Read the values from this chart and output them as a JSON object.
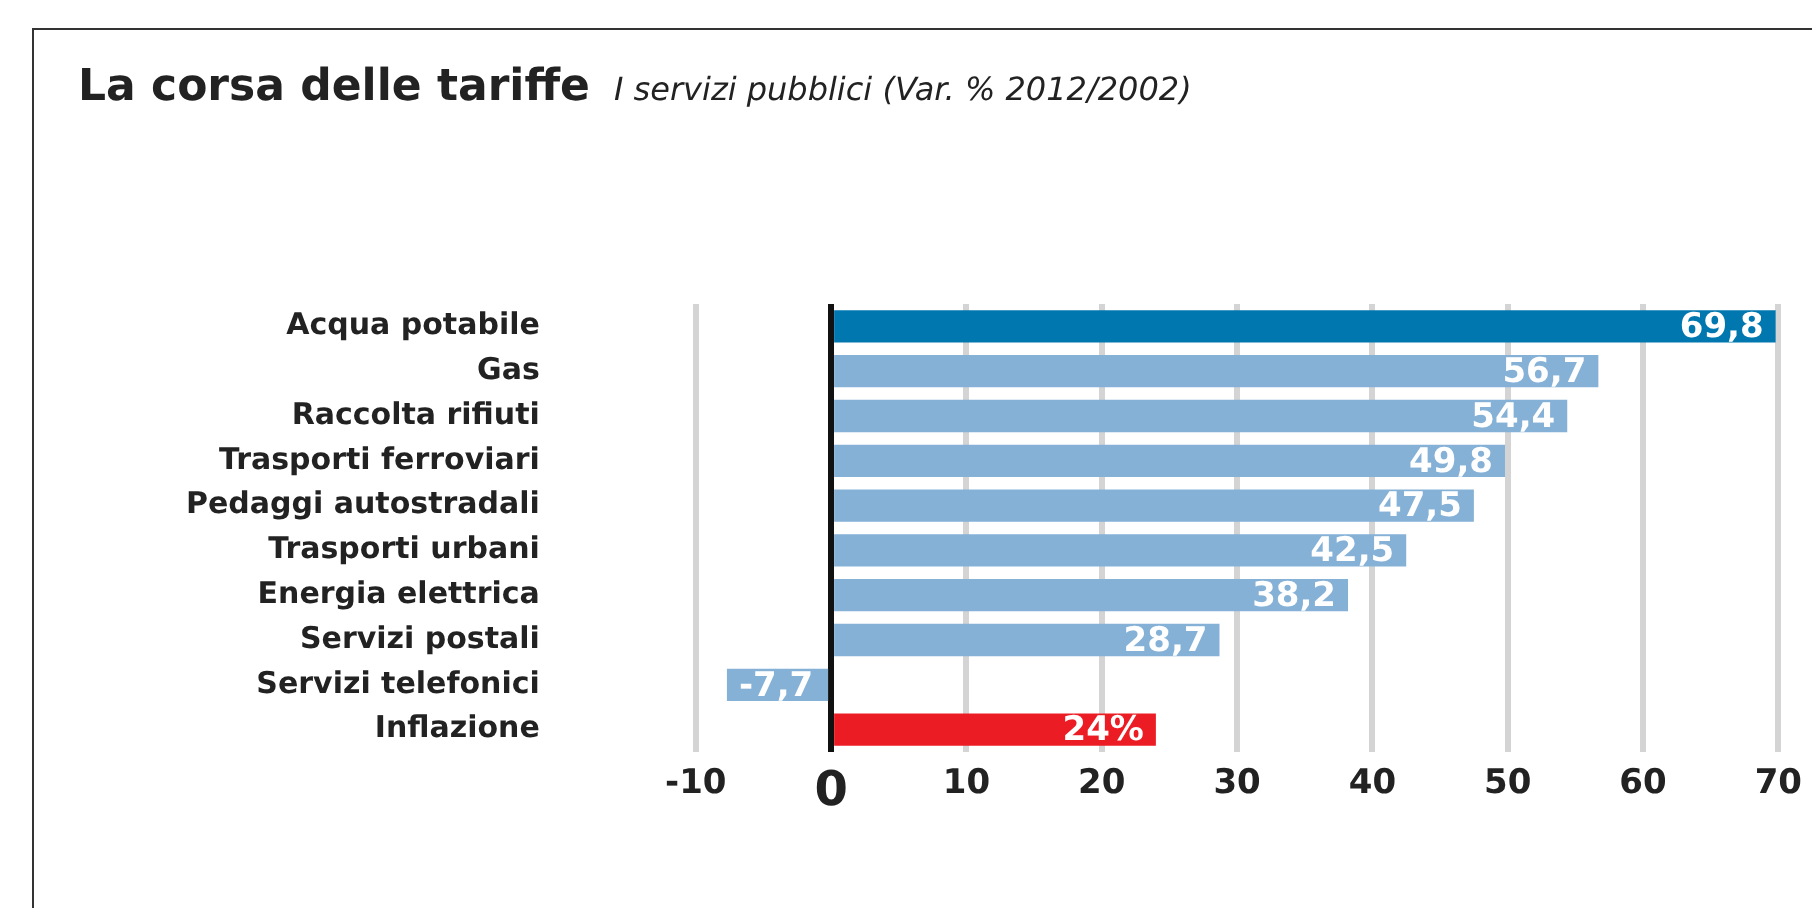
{
  "chart_data": {
    "type": "bar",
    "orientation": "horizontal",
    "title": "La corsa delle tariffe",
    "subtitle": "I servizi pubblici (Var. % 2012/2002)",
    "categories": [
      "Acqua potabile",
      "Gas",
      "Raccolta rifiuti",
      "Trasporti ferroviari",
      "Pedaggi autostradali",
      "Trasporti urbani",
      "Energia elettrica",
      "Servizi postali",
      "Servizi telefonici",
      "Inflazione"
    ],
    "values": [
      69.8,
      56.7,
      54.4,
      49.8,
      47.5,
      42.5,
      38.2,
      28.7,
      -7.7,
      24
    ],
    "colors": [
      "#0077ae",
      "#85b1d7",
      "#85b1d7",
      "#85b1d7",
      "#85b1d7",
      "#85b1d7",
      "#85b1d7",
      "#85b1d7",
      "#85b1d7",
      "#ec1c24"
    ],
    "value_labels": [
      "69,8",
      "56,7",
      "54,4",
      "49,8",
      "47,5",
      "42,5",
      "38,2",
      "28,7",
      "-7,7",
      "24%"
    ],
    "xlim": [
      -10,
      70
    ],
    "xticks": [
      -10,
      0,
      10,
      20,
      30,
      40,
      50,
      60,
      70
    ],
    "grid": "x"
  }
}
